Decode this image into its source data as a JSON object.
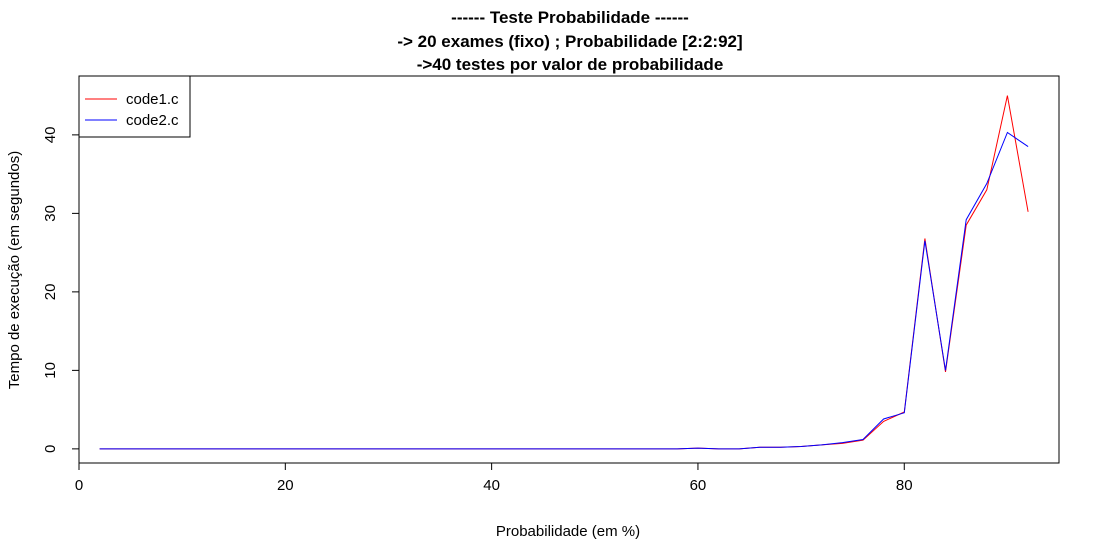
{
  "chart_data": {
    "type": "line",
    "title_lines": [
      "------ Teste Probabilidade ------",
      "-> 20 exames (fixo) ; Probabilidade [2:2:92]",
      "->40 testes por valor de probabilidade"
    ],
    "xlabel": "Probabilidade (em %)",
    "ylabel": "Tempo de execução (em segundos)",
    "xlim": [
      0,
      95
    ],
    "ylim": [
      -1.8,
      47.5
    ],
    "x_ticks": [
      "0",
      "20",
      "40",
      "60",
      "80"
    ],
    "y_ticks": [
      "0",
      "10",
      "20",
      "30",
      "40"
    ],
    "x": [
      2,
      4,
      6,
      8,
      10,
      12,
      14,
      16,
      18,
      20,
      22,
      24,
      26,
      28,
      30,
      32,
      34,
      36,
      38,
      40,
      42,
      44,
      46,
      48,
      50,
      52,
      54,
      56,
      58,
      60,
      62,
      64,
      66,
      68,
      70,
      72,
      74,
      76,
      78,
      80,
      82,
      84,
      86,
      88,
      90,
      92
    ],
    "series": [
      {
        "name": "code1.c",
        "color": "#ff0000",
        "values": [
          0,
          0,
          0,
          0,
          0,
          0,
          0,
          0,
          0,
          0,
          0,
          0,
          0,
          0,
          0,
          0,
          0,
          0,
          0,
          0,
          0,
          0,
          0,
          0,
          0,
          0,
          0,
          0,
          0,
          0.1,
          0,
          0,
          0.2,
          0.2,
          0.3,
          0.5,
          0.7,
          1.1,
          3.5,
          4.7,
          26.8,
          9.8,
          28.5,
          33.0,
          45.0,
          30.2
        ]
      },
      {
        "name": "code2.c",
        "color": "#0000ff",
        "values": [
          0,
          0,
          0,
          0,
          0,
          0,
          0,
          0,
          0,
          0,
          0,
          0,
          0,
          0,
          0,
          0,
          0,
          0,
          0,
          0,
          0,
          0,
          0,
          0,
          0,
          0,
          0,
          0,
          0,
          0.1,
          0,
          0,
          0.2,
          0.2,
          0.3,
          0.5,
          0.8,
          1.2,
          3.8,
          4.6,
          26.5,
          10.0,
          29.2,
          33.8,
          40.3,
          38.5
        ]
      }
    ],
    "legend": {
      "placement": "top-left",
      "entries": [
        "code1.c",
        "code2.c"
      ]
    },
    "grid": false
  }
}
